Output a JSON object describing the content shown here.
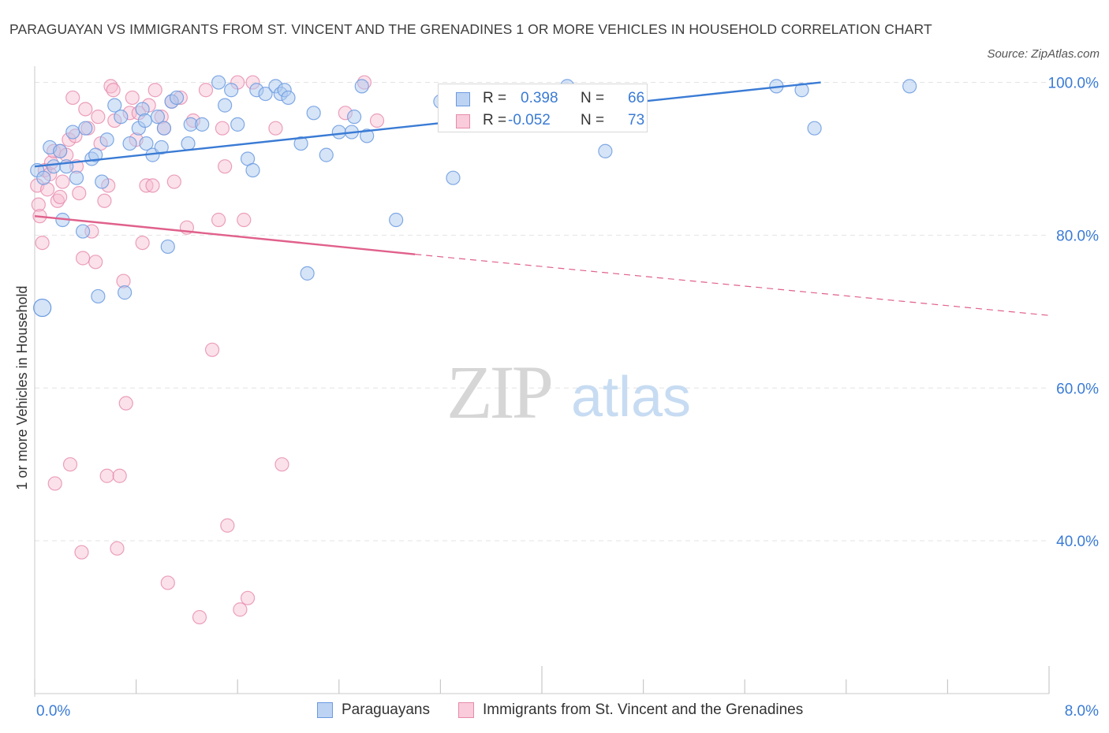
{
  "title": "PARAGUAYAN VS IMMIGRANTS FROM ST. VINCENT AND THE GRENADINES 1 OR MORE VEHICLES IN HOUSEHOLD CORRELATION CHART",
  "source": "Source: ZipAtlas.com",
  "watermark": {
    "zip": "ZIP",
    "atlas": "atlas"
  },
  "legend": {
    "r_label": "R =",
    "n_label": "N =",
    "rows": [
      {
        "r": "0.398",
        "n": "66"
      },
      {
        "r": "-0.052",
        "n": "73"
      }
    ]
  },
  "chart_data": {
    "type": "scatter",
    "ylabel": "1 or more Vehicles in Household",
    "xlim": [
      0,
      8
    ],
    "ylim": [
      20,
      101.5
    ],
    "x_tick_labels": [
      "0.0%",
      "8.0%"
    ],
    "y_ticks": [
      {
        "value": 100,
        "label": "100.0%"
      },
      {
        "value": 80,
        "label": "80.0%"
      },
      {
        "value": 60,
        "label": "60.0%"
      },
      {
        "value": 40,
        "label": "40.0%"
      }
    ],
    "grid": true,
    "legend_position": "bottom",
    "colors": {
      "blue_fill": "#aec9f0",
      "blue_stroke": "#6b9be0",
      "blue_line": "#3a7bd5",
      "pink_fill": "#f6bcd0",
      "pink_stroke": "#e68aac",
      "pink_line": "#e0608c",
      "axis_label": "#3a7bd5"
    },
    "series": [
      {
        "name": "Paraguayans",
        "trend": {
          "x": [
            0,
            6.2
          ],
          "y": [
            89.0,
            100.0
          ]
        },
        "points": [
          [
            0.02,
            88.5
          ],
          [
            0.07,
            87.5
          ],
          [
            0.12,
            91.5
          ],
          [
            0.15,
            89.0
          ],
          [
            0.2,
            91.0
          ],
          [
            0.22,
            82.0
          ],
          [
            0.25,
            89.0
          ],
          [
            0.3,
            93.5
          ],
          [
            0.33,
            87.5
          ],
          [
            0.38,
            80.5
          ],
          [
            0.4,
            94.0
          ],
          [
            0.45,
            90.0
          ],
          [
            0.48,
            90.5
          ],
          [
            0.5,
            72.0
          ],
          [
            0.53,
            87.0
          ],
          [
            0.57,
            92.5
          ],
          [
            0.63,
            97.0
          ],
          [
            0.68,
            95.5
          ],
          [
            0.71,
            72.5
          ],
          [
            0.75,
            92.0
          ],
          [
            0.82,
            94.0
          ],
          [
            0.85,
            96.5
          ],
          [
            0.87,
            95.0
          ],
          [
            0.88,
            92.0
          ],
          [
            0.93,
            90.5
          ],
          [
            0.97,
            95.5
          ],
          [
            1.0,
            91.5
          ],
          [
            1.02,
            94.0
          ],
          [
            1.05,
            78.5
          ],
          [
            1.08,
            97.5
          ],
          [
            1.12,
            98.0
          ],
          [
            1.21,
            92.0
          ],
          [
            1.23,
            94.5
          ],
          [
            1.32,
            94.5
          ],
          [
            1.45,
            100.0
          ],
          [
            1.5,
            97.0
          ],
          [
            1.55,
            99.0
          ],
          [
            1.6,
            94.5
          ],
          [
            1.68,
            90.0
          ],
          [
            1.72,
            88.5
          ],
          [
            1.75,
            99.0
          ],
          [
            1.82,
            98.5
          ],
          [
            1.9,
            99.5
          ],
          [
            1.94,
            98.5
          ],
          [
            1.97,
            99.0
          ],
          [
            2.0,
            98.0
          ],
          [
            2.1,
            92.0
          ],
          [
            2.15,
            75.0
          ],
          [
            2.2,
            96.0
          ],
          [
            2.3,
            90.5
          ],
          [
            2.4,
            93.5
          ],
          [
            2.5,
            93.5
          ],
          [
            2.52,
            95.5
          ],
          [
            2.58,
            99.5
          ],
          [
            2.62,
            93.0
          ],
          [
            2.85,
            82.0
          ],
          [
            3.2,
            97.5
          ],
          [
            3.3,
            87.5
          ],
          [
            3.5,
            95.0
          ],
          [
            4.2,
            99.5
          ],
          [
            4.3,
            98.0
          ],
          [
            4.5,
            91.0
          ],
          [
            5.85,
            99.5
          ],
          [
            6.05,
            99.0
          ],
          [
            6.15,
            94.0
          ],
          [
            6.9,
            99.5
          ]
        ]
      },
      {
        "name": "Immigrants from St. Vincent and the Grenadines",
        "trend": {
          "x": [
            0,
            3.0
          ],
          "y": [
            82.5,
            77.5
          ],
          "dash_to_x": 8.0,
          "dash_to_y": 69.5
        },
        "points": [
          [
            0.02,
            86.5
          ],
          [
            0.03,
            84.0
          ],
          [
            0.04,
            82.5
          ],
          [
            0.06,
            79.0
          ],
          [
            0.08,
            88.5
          ],
          [
            0.1,
            86.0
          ],
          [
            0.12,
            88.0
          ],
          [
            0.13,
            89.5
          ],
          [
            0.15,
            91.0
          ],
          [
            0.16,
            47.5
          ],
          [
            0.18,
            84.5
          ],
          [
            0.2,
            85.0
          ],
          [
            0.2,
            91.0
          ],
          [
            0.22,
            87.0
          ],
          [
            0.25,
            90.5
          ],
          [
            0.27,
            92.5
          ],
          [
            0.28,
            50.0
          ],
          [
            0.3,
            98.0
          ],
          [
            0.32,
            93.0
          ],
          [
            0.33,
            89.0
          ],
          [
            0.35,
            85.5
          ],
          [
            0.37,
            38.5
          ],
          [
            0.38,
            77.0
          ],
          [
            0.4,
            96.5
          ],
          [
            0.42,
            94.0
          ],
          [
            0.45,
            80.5
          ],
          [
            0.48,
            76.5
          ],
          [
            0.5,
            95.5
          ],
          [
            0.52,
            92.0
          ],
          [
            0.55,
            84.5
          ],
          [
            0.57,
            48.5
          ],
          [
            0.58,
            86.5
          ],
          [
            0.6,
            99.5
          ],
          [
            0.62,
            99.0
          ],
          [
            0.63,
            95.0
          ],
          [
            0.65,
            39.0
          ],
          [
            0.67,
            48.5
          ],
          [
            0.7,
            74.0
          ],
          [
            0.72,
            58.0
          ],
          [
            0.75,
            96.0
          ],
          [
            0.77,
            98.0
          ],
          [
            0.8,
            92.5
          ],
          [
            0.82,
            96.0
          ],
          [
            0.85,
            79.0
          ],
          [
            0.88,
            86.5
          ],
          [
            0.9,
            97.0
          ],
          [
            0.93,
            86.5
          ],
          [
            0.95,
            99.0
          ],
          [
            1.0,
            95.5
          ],
          [
            1.02,
            94.0
          ],
          [
            1.05,
            34.5
          ],
          [
            1.08,
            97.5
          ],
          [
            1.1,
            87.0
          ],
          [
            1.15,
            98.0
          ],
          [
            1.2,
            81.0
          ],
          [
            1.25,
            95.0
          ],
          [
            1.3,
            30.0
          ],
          [
            1.35,
            99.0
          ],
          [
            1.4,
            65.0
          ],
          [
            1.45,
            82.0
          ],
          [
            1.48,
            94.0
          ],
          [
            1.5,
            89.0
          ],
          [
            1.52,
            42.0
          ],
          [
            1.6,
            100.0
          ],
          [
            1.62,
            31.0
          ],
          [
            1.65,
            82.0
          ],
          [
            1.68,
            32.5
          ],
          [
            1.72,
            100.0
          ],
          [
            1.9,
            94.0
          ],
          [
            1.95,
            50.0
          ],
          [
            2.45,
            96.0
          ],
          [
            2.6,
            100.0
          ],
          [
            2.7,
            95.0
          ]
        ]
      }
    ]
  }
}
